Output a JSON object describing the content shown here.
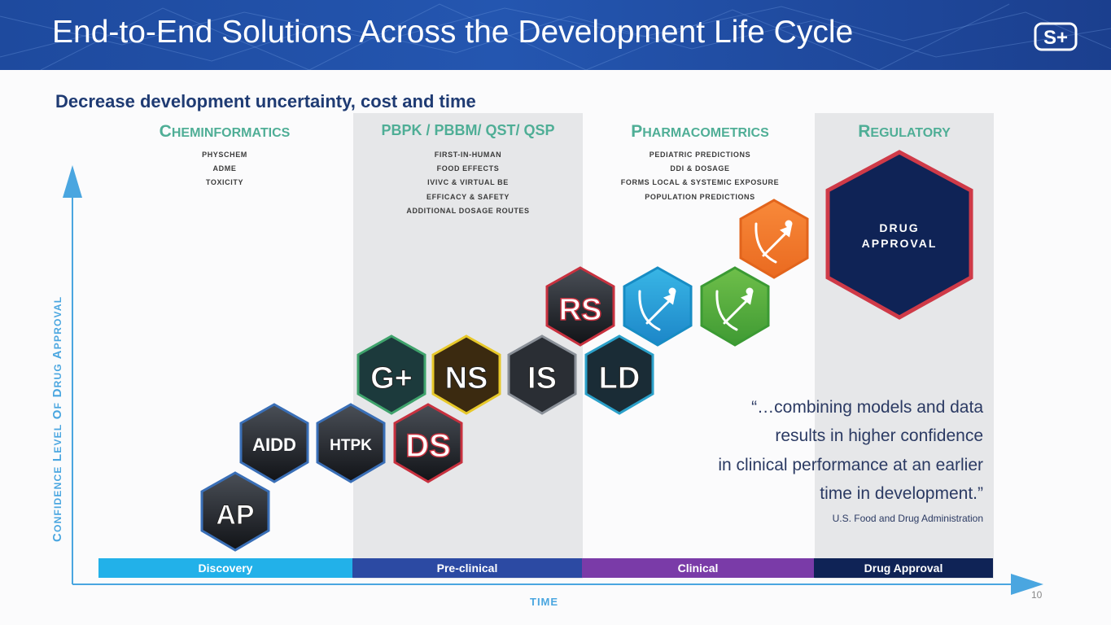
{
  "header": {
    "title": "End-to-End Solutions Across the Development Life Cycle",
    "logo_text": "S+"
  },
  "subtitle": "Decrease development uncertainty, cost and time",
  "categories": [
    {
      "name": "Cheminformatics",
      "items": [
        "PHYSCHEM",
        "ADME",
        "TOXICITY"
      ]
    },
    {
      "name": "PBPK / PBBM/ QST/ QSP",
      "items": [
        "FIRST-IN-HUMAN",
        "FOOD EFFECTS",
        "IVIVC & VIRTUAL BE",
        "EFFICACY & SAFETY",
        "ADDITIONAL DOSAGE ROUTES"
      ]
    },
    {
      "name": "Pharmacometrics",
      "items": [
        "PEDIATRIC PREDICTIONS",
        "DDI & DOSAGE",
        "FORMS LOCAL & SYSTEMIC EXPOSURE",
        "POPULATION PREDICTIONS"
      ]
    },
    {
      "name": "Regulatory",
      "items": []
    }
  ],
  "products": {
    "ap": "AP",
    "aidd": "AIDD",
    "htpk": "HTPK",
    "ds": "DS",
    "gplus": "G+",
    "ns": "NS",
    "is": "IS",
    "rs": "RS",
    "ld": "LD",
    "mb_blue": "monolix-blue-icon",
    "mb_green": "monolix-green-icon",
    "mb_orange": "monolix-orange-icon"
  },
  "drug_approval_hex": {
    "line1": "DRUG",
    "line2": "APPROVAL"
  },
  "y_axis_label": "Confidence Level of Drug Approval",
  "x_axis_label": "TIME",
  "phases": [
    "Discovery",
    "Pre-clinical",
    "Clinical",
    "Drug Approval"
  ],
  "quote": {
    "lines": [
      "“…combining models and data",
      "results in higher confidence",
      "in clinical performance at an earlier",
      "time in development.”"
    ],
    "source": "U.S. Food and Drug Administration"
  },
  "page_number": "10",
  "colors": {
    "header_blue": "#2456b0",
    "category_green": "#4fae96",
    "discovery": "#22b1e9",
    "preclinical": "#2c4aa3",
    "clinical": "#7a3ba8",
    "approval": "#0f2356",
    "approval_hex_fill": "#0f2356",
    "approval_hex_border": "#cf3a48",
    "axis_blue": "#4aa6e0"
  }
}
